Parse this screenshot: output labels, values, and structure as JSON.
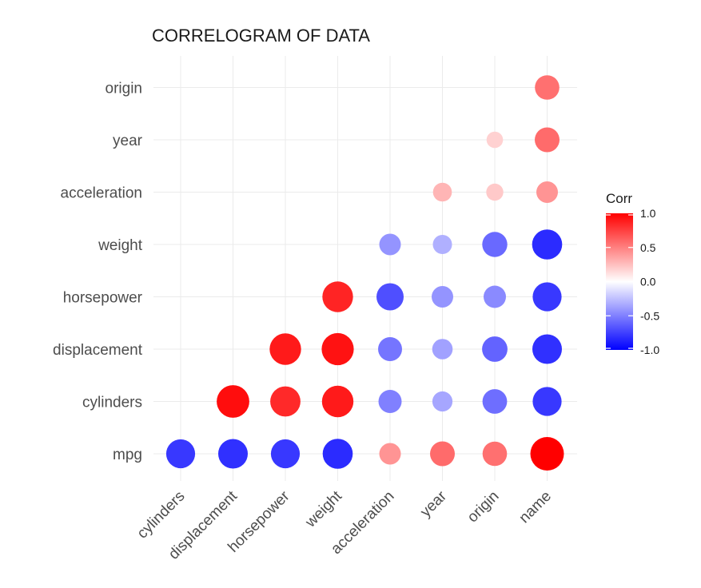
{
  "chart_data": {
    "type": "scatter",
    "title": "CORRELOGRAM OF DATA",
    "x_categories": [
      "cylinders",
      "displacement",
      "horsepower",
      "weight",
      "acceleration",
      "year",
      "origin",
      "name"
    ],
    "y_categories": [
      "mpg",
      "cylinders",
      "displacement",
      "horsepower",
      "weight",
      "acceleration",
      "year",
      "origin"
    ],
    "legend": {
      "title": "Corr",
      "ticks": [
        "1.0",
        "0.5",
        "0.0",
        "-0.5",
        "-1.0"
      ],
      "range": [
        -1,
        1
      ],
      "low_color": "#0000ff",
      "mid_color": "#ffffff",
      "high_color": "#ff0000",
      "position": "right"
    },
    "grid": true,
    "cells": [
      {
        "x": "cylinders",
        "y": "mpg",
        "r": -0.78
      },
      {
        "x": "displacement",
        "y": "mpg",
        "r": -0.81
      },
      {
        "x": "horsepower",
        "y": "mpg",
        "r": -0.78
      },
      {
        "x": "weight",
        "y": "mpg",
        "r": -0.83
      },
      {
        "x": "acceleration",
        "y": "mpg",
        "r": 0.42
      },
      {
        "x": "year",
        "y": "mpg",
        "r": 0.58
      },
      {
        "x": "origin",
        "y": "mpg",
        "r": 0.56
      },
      {
        "x": "name",
        "y": "mpg",
        "r": 1.0
      },
      {
        "x": "displacement",
        "y": "cylinders",
        "r": 0.95
      },
      {
        "x": "horsepower",
        "y": "cylinders",
        "r": 0.84
      },
      {
        "x": "weight",
        "y": "cylinders",
        "r": 0.9
      },
      {
        "x": "acceleration",
        "y": "cylinders",
        "r": -0.5
      },
      {
        "x": "year",
        "y": "cylinders",
        "r": -0.35
      },
      {
        "x": "origin",
        "y": "cylinders",
        "r": -0.57
      },
      {
        "x": "name",
        "y": "cylinders",
        "r": -0.78
      },
      {
        "x": "horsepower",
        "y": "displacement",
        "r": 0.9
      },
      {
        "x": "weight",
        "y": "displacement",
        "r": 0.93
      },
      {
        "x": "acceleration",
        "y": "displacement",
        "r": -0.54
      },
      {
        "x": "year",
        "y": "displacement",
        "r": -0.37
      },
      {
        "x": "origin",
        "y": "displacement",
        "r": -0.61
      },
      {
        "x": "name",
        "y": "displacement",
        "r": -0.81
      },
      {
        "x": "weight",
        "y": "horsepower",
        "r": 0.86
      },
      {
        "x": "acceleration",
        "y": "horsepower",
        "r": -0.69
      },
      {
        "x": "year",
        "y": "horsepower",
        "r": -0.42
      },
      {
        "x": "origin",
        "y": "horsepower",
        "r": -0.46
      },
      {
        "x": "name",
        "y": "horsepower",
        "r": -0.78
      },
      {
        "x": "acceleration",
        "y": "weight",
        "r": -0.42
      },
      {
        "x": "year",
        "y": "weight",
        "r": -0.31
      },
      {
        "x": "origin",
        "y": "weight",
        "r": -0.59
      },
      {
        "x": "name",
        "y": "weight",
        "r": -0.83
      },
      {
        "x": "year",
        "y": "acceleration",
        "r": 0.29
      },
      {
        "x": "origin",
        "y": "acceleration",
        "r": 0.21
      },
      {
        "x": "name",
        "y": "acceleration",
        "r": 0.42
      },
      {
        "x": "origin",
        "y": "year",
        "r": 0.18
      },
      {
        "x": "name",
        "y": "year",
        "r": 0.58
      },
      {
        "x": "name",
        "y": "origin",
        "r": 0.56
      }
    ]
  }
}
